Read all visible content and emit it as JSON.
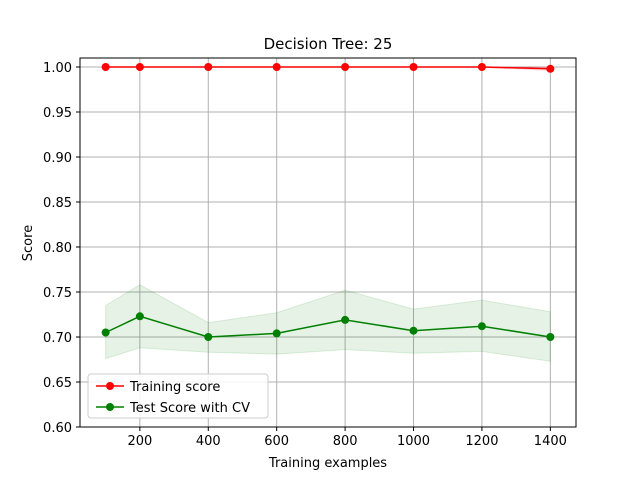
{
  "chart_data": {
    "type": "line",
    "title": "Decision Tree: 25",
    "xlabel": "Training examples",
    "ylabel": "Score",
    "xlim": [
      25,
      1475
    ],
    "ylim": [
      0.6,
      1.01
    ],
    "grid": true,
    "legend_position": "lower-left",
    "x_ticks": [
      200,
      400,
      600,
      800,
      1000,
      1200,
      1400
    ],
    "y_ticks": [
      0.6,
      0.65,
      0.7,
      0.75,
      0.8,
      0.85,
      0.9,
      0.95,
      1.0
    ],
    "x": [
      100,
      200,
      400,
      600,
      800,
      1000,
      1200,
      1400
    ],
    "series": [
      {
        "name": "Training score",
        "color": "#ff0000",
        "values": [
          1.0,
          1.0,
          1.0,
          1.0,
          1.0,
          1.0,
          1.0,
          0.998
        ],
        "band_low": [
          1.0,
          1.0,
          1.0,
          1.0,
          1.0,
          1.0,
          1.0,
          0.996
        ],
        "band_high": [
          1.0,
          1.0,
          1.0,
          1.0,
          1.0,
          1.0,
          1.0,
          1.0
        ]
      },
      {
        "name": "Test Score with CV",
        "color": "#008000",
        "values": [
          0.705,
          0.723,
          0.7,
          0.704,
          0.719,
          0.707,
          0.712,
          0.7
        ],
        "band_low": [
          0.676,
          0.688,
          0.683,
          0.681,
          0.686,
          0.682,
          0.684,
          0.673
        ],
        "band_high": [
          0.735,
          0.758,
          0.716,
          0.727,
          0.752,
          0.731,
          0.741,
          0.728
        ]
      }
    ]
  }
}
